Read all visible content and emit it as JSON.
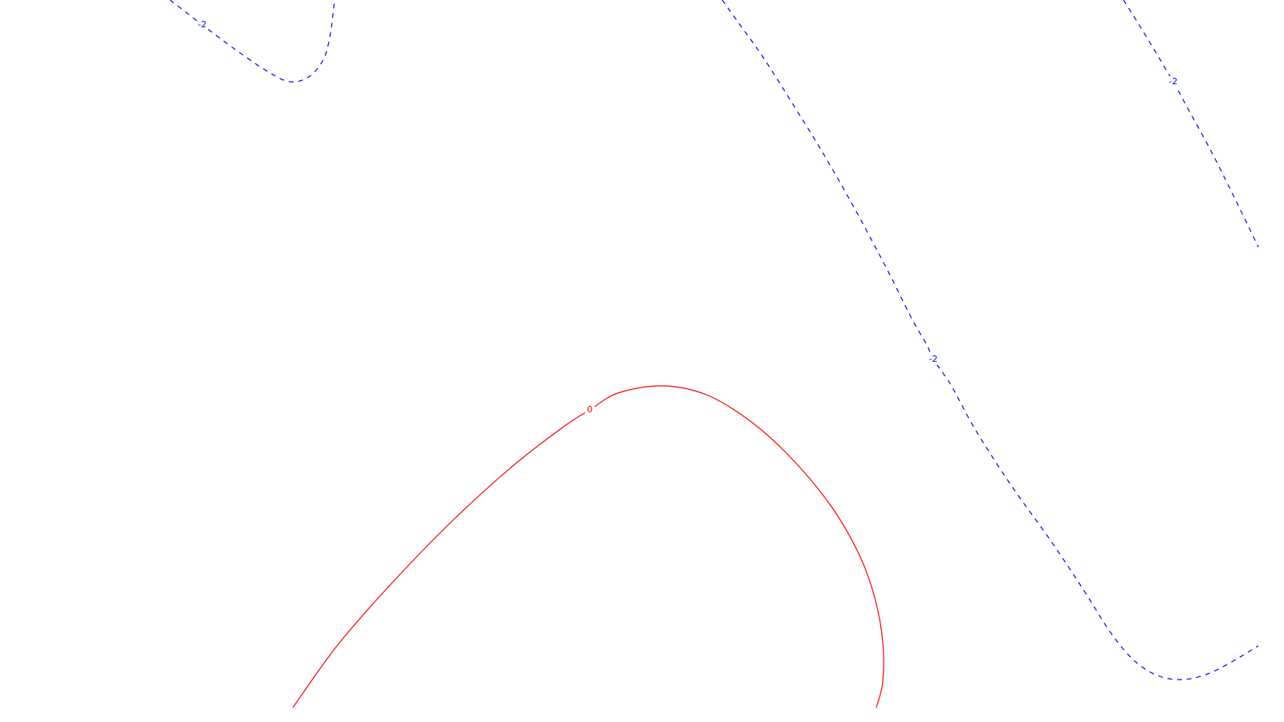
{
  "chart_data": {
    "type": "contour",
    "grid": false,
    "levels": [
      {
        "value": -2,
        "label": "-2",
        "color": "#0000ff",
        "line_style": "dashed",
        "segments": [
          {
            "id": "upper-left",
            "label_shown": true,
            "label_at_point": 2
          },
          {
            "id": "center-diagonal",
            "label_shown": true,
            "label_at_point": 9
          },
          {
            "id": "upper-right",
            "label_shown": true,
            "label_at_point": 2
          }
        ]
      },
      {
        "value": 0,
        "label": "0",
        "color": "#ff0000",
        "line_style": "solid",
        "segments": [
          {
            "id": "lower-arch",
            "label_shown": true,
            "label_at_point": 6
          }
        ]
      }
    ]
  }
}
